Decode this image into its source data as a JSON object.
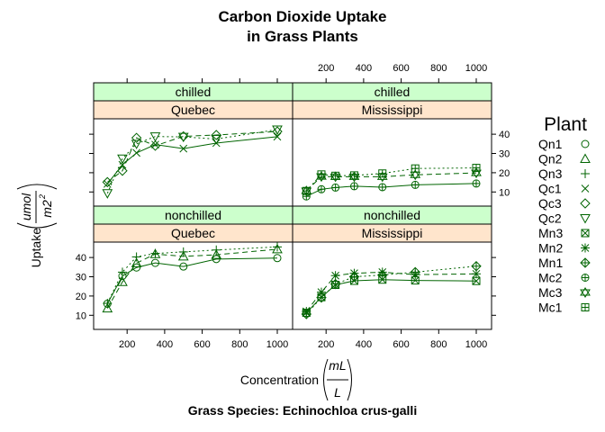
{
  "chart_data": {
    "type": "line",
    "title_line1": "Carbon Dioxide Uptake",
    "title_line2": "in Grass Plants",
    "subtitle": "Grass Species: Echinochloa crus-galli",
    "xlabel": "Concentration",
    "xlabel_fraction": {
      "numerator": "mL",
      "denominator": "L"
    },
    "ylabel": "Uptake",
    "ylabel_fraction": {
      "numerator": "umol",
      "denominator": "m2"
    },
    "xlim": [
      0,
      1090
    ],
    "ylim": [
      5,
      48
    ],
    "x_ticks": [
      200,
      400,
      600,
      800,
      1000
    ],
    "y_ticks": [
      10,
      20,
      30,
      40
    ],
    "legend_title": "Plant",
    "legend_position": "right",
    "line_color": "#006400",
    "strip_treatment_color": "#ccffcc",
    "strip_type_color": "#ffe5cc",
    "plants": [
      {
        "name": "Qn1",
        "symbol": "circle",
        "lty": "solid"
      },
      {
        "name": "Qn2",
        "symbol": "triangle",
        "lty": "dashed"
      },
      {
        "name": "Qn3",
        "symbol": "plus",
        "lty": "dotted"
      },
      {
        "name": "Qc1",
        "symbol": "cross",
        "lty": "solid"
      },
      {
        "name": "Qc3",
        "symbol": "diamond",
        "lty": "dashed"
      },
      {
        "name": "Qc2",
        "symbol": "triangle-down",
        "lty": "dotted"
      },
      {
        "name": "Mn3",
        "symbol": "square-x",
        "lty": "solid"
      },
      {
        "name": "Mn2",
        "symbol": "asterisk",
        "lty": "dashed"
      },
      {
        "name": "Mn1",
        "symbol": "diamond-plus",
        "lty": "dotted"
      },
      {
        "name": "Mc2",
        "symbol": "circle-plus",
        "lty": "solid"
      },
      {
        "name": "Mc3",
        "symbol": "star-of-david",
        "lty": "dashed"
      },
      {
        "name": "Mc1",
        "symbol": "square-plus",
        "lty": "dotted"
      }
    ],
    "conc": [
      95,
      175,
      250,
      350,
      500,
      675,
      1000
    ],
    "panels": [
      {
        "treatment": "chilled",
        "type": "Quebec",
        "series": [
          {
            "plant": "Qc1",
            "values": [
              14.2,
              24.1,
              30.3,
              34.6,
              32.5,
              35.4,
              38.7
            ]
          },
          {
            "plant": "Qc3",
            "values": [
              15.1,
              21.0,
              38.1,
              34.0,
              38.9,
              39.6,
              41.4
            ]
          },
          {
            "plant": "Qc2",
            "values": [
              9.3,
              27.3,
              35.0,
              38.8,
              38.6,
              37.5,
              42.4
            ]
          }
        ]
      },
      {
        "treatment": "chilled",
        "type": "Mississippi",
        "series": [
          {
            "plant": "Mc2",
            "values": [
              7.7,
              11.4,
              12.3,
              13.0,
              12.5,
              13.7,
              14.4
            ]
          },
          {
            "plant": "Mc3",
            "values": [
              10.6,
              18.0,
              17.9,
              17.9,
              17.9,
              18.9,
              19.9
            ]
          },
          {
            "plant": "Mc1",
            "values": [
              10.5,
              19.1,
              18.4,
              18.6,
              19.6,
              22.2,
              22.5
            ]
          }
        ]
      },
      {
        "treatment": "nonchilled",
        "type": "Quebec",
        "series": [
          {
            "plant": "Qn1",
            "values": [
              16.0,
              30.4,
              34.8,
              37.2,
              35.3,
              39.2,
              39.7
            ]
          },
          {
            "plant": "Qn2",
            "values": [
              13.6,
              27.3,
              37.1,
              41.8,
              40.6,
              41.4,
              44.3
            ]
          },
          {
            "plant": "Qn3",
            "values": [
              16.2,
              32.4,
              40.3,
              42.1,
              42.9,
              43.9,
              45.5
            ]
          }
        ]
      },
      {
        "treatment": "nonchilled",
        "type": "Mississippi",
        "series": [
          {
            "plant": "Mn3",
            "values": [
              11.3,
              19.4,
              25.8,
              27.9,
              28.5,
              28.1,
              27.8
            ]
          },
          {
            "plant": "Mn2",
            "values": [
              12.0,
              22.0,
              30.6,
              31.8,
              32.4,
              31.1,
              31.5
            ]
          },
          {
            "plant": "Mn1",
            "values": [
              10.6,
              19.2,
              26.2,
              30.0,
              30.9,
              32.4,
              35.5
            ]
          }
        ]
      }
    ]
  }
}
